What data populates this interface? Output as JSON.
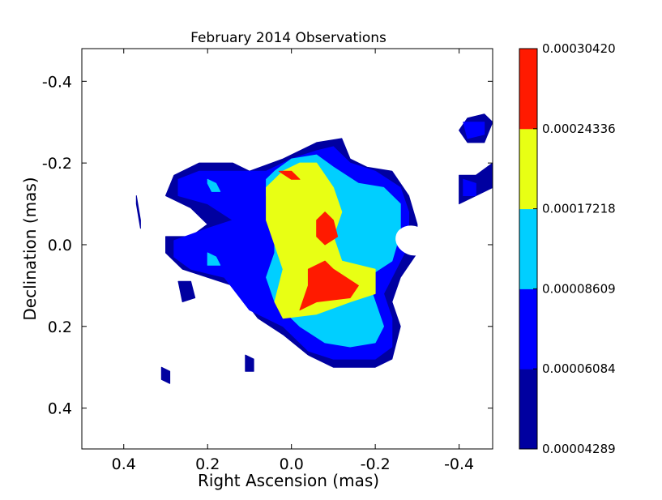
{
  "chart_data": {
    "type": "contour",
    "title": "February 2014 Observations",
    "xlabel": "Right Ascension (mas)",
    "ylabel": "Declination (mas)",
    "xlim": [
      0.5,
      -0.48
    ],
    "ylim": [
      -0.48,
      0.5
    ],
    "x_ticks": [
      0.4,
      0.2,
      0.0,
      -0.2,
      -0.4
    ],
    "x_tick_labels": [
      "0.4",
      "0.2",
      "0.0",
      "-0.2",
      "-0.4"
    ],
    "y_ticks": [
      -0.4,
      -0.2,
      0.0,
      0.2,
      0.4
    ],
    "y_tick_labels": [
      "-0.4",
      "-0.2",
      "0.0",
      "0.2",
      "0.4"
    ],
    "colorbar": {
      "levels": [
        4.289e-05,
        6.084e-05,
        8.609e-05,
        0.00017218,
        0.00024336,
        0.0003042
      ],
      "level_labels": [
        "0.00004289",
        "0.00006084",
        "0.00008609",
        "0.00017218",
        "0.00024336",
        "0.00030420"
      ],
      "colors": [
        "#0000a0",
        "#0000ff",
        "#00cfff",
        "#e8ff14",
        "#ff1a00"
      ]
    },
    "contours": [
      {
        "level": 0,
        "points": [
          [
            0.28,
            -0.17
          ],
          [
            0.22,
            -0.2
          ],
          [
            0.14,
            -0.2
          ],
          [
            0.1,
            -0.18
          ],
          [
            0.02,
            -0.21
          ],
          [
            -0.06,
            -0.25
          ],
          [
            -0.12,
            -0.26
          ],
          [
            -0.14,
            -0.21
          ],
          [
            -0.18,
            -0.19
          ],
          [
            -0.24,
            -0.18
          ],
          [
            -0.28,
            -0.12
          ],
          [
            -0.3,
            -0.05
          ],
          [
            -0.3,
            0.02
          ],
          [
            -0.26,
            0.08
          ],
          [
            -0.24,
            0.14
          ],
          [
            -0.26,
            0.2
          ],
          [
            -0.24,
            0.28
          ],
          [
            -0.2,
            0.3
          ],
          [
            -0.1,
            0.3
          ],
          [
            -0.04,
            0.27
          ],
          [
            0.02,
            0.22
          ],
          [
            0.08,
            0.18
          ],
          [
            0.14,
            0.1
          ],
          [
            0.2,
            0.08
          ],
          [
            0.26,
            0.06
          ],
          [
            0.3,
            0.02
          ],
          [
            0.3,
            -0.02
          ],
          [
            0.24,
            -0.02
          ],
          [
            0.2,
            -0.05
          ],
          [
            0.24,
            -0.09
          ],
          [
            0.3,
            -0.12
          ]
        ]
      },
      {
        "level": 0,
        "points": [
          [
            -0.42,
            -0.31
          ],
          [
            -0.46,
            -0.32
          ],
          [
            -0.48,
            -0.3
          ],
          [
            -0.46,
            -0.25
          ],
          [
            -0.42,
            -0.25
          ],
          [
            -0.4,
            -0.28
          ]
        ]
      },
      {
        "level": 0,
        "points": [
          [
            -0.4,
            -0.17
          ],
          [
            -0.44,
            -0.17
          ],
          [
            -0.48,
            -0.2
          ],
          [
            -0.48,
            -0.14
          ],
          [
            -0.44,
            -0.12
          ],
          [
            -0.4,
            -0.1
          ],
          [
            -0.4,
            -0.14
          ]
        ]
      },
      {
        "level": 0,
        "points": [
          [
            0.37,
            -0.12
          ],
          [
            0.36,
            -0.06
          ],
          [
            0.36,
            -0.04
          ],
          [
            0.37,
            -0.1
          ]
        ]
      },
      {
        "level": 0,
        "points": [
          [
            0.27,
            0.09
          ],
          [
            0.24,
            0.09
          ],
          [
            0.23,
            0.13
          ],
          [
            0.26,
            0.14
          ]
        ]
      },
      {
        "level": 0,
        "points": [
          [
            0.31,
            0.3
          ],
          [
            0.29,
            0.31
          ],
          [
            0.29,
            0.34
          ],
          [
            0.31,
            0.33
          ]
        ]
      },
      {
        "level": 0,
        "points": [
          [
            0.11,
            0.27
          ],
          [
            0.09,
            0.28
          ],
          [
            0.09,
            0.31
          ],
          [
            0.11,
            0.31
          ]
        ]
      },
      {
        "level": 1,
        "points": [
          [
            0.27,
            -0.16
          ],
          [
            0.22,
            -0.18
          ],
          [
            0.15,
            -0.18
          ],
          [
            0.06,
            -0.18
          ],
          [
            0.0,
            -0.21
          ],
          [
            -0.06,
            -0.23
          ],
          [
            -0.1,
            -0.24
          ],
          [
            -0.14,
            -0.2
          ],
          [
            -0.2,
            -0.18
          ],
          [
            -0.26,
            -0.14
          ],
          [
            -0.28,
            -0.08
          ],
          [
            -0.28,
            0.0
          ],
          [
            -0.25,
            0.06
          ],
          [
            -0.22,
            0.12
          ],
          [
            -0.24,
            0.18
          ],
          [
            -0.24,
            0.25
          ],
          [
            -0.2,
            0.28
          ],
          [
            -0.1,
            0.28
          ],
          [
            -0.04,
            0.26
          ],
          [
            0.02,
            0.2
          ],
          [
            0.1,
            0.16
          ],
          [
            0.16,
            0.08
          ],
          [
            0.24,
            0.06
          ],
          [
            0.28,
            0.03
          ],
          [
            0.28,
            -0.01
          ],
          [
            0.2,
            -0.04
          ],
          [
            0.14,
            -0.06
          ],
          [
            0.2,
            -0.1
          ],
          [
            0.27,
            -0.12
          ]
        ]
      },
      {
        "level": 1,
        "points": [
          [
            -0.41,
            -0.3
          ],
          [
            -0.46,
            -0.3
          ],
          [
            -0.46,
            -0.27
          ],
          [
            -0.42,
            -0.26
          ]
        ]
      },
      {
        "level": 1,
        "points": [
          [
            -0.41,
            -0.16
          ],
          [
            -0.44,
            -0.15
          ],
          [
            -0.44,
            -0.12
          ],
          [
            -0.41,
            -0.12
          ]
        ]
      },
      {
        "level": 2,
        "points": [
          [
            0.04,
            -0.18
          ],
          [
            0.0,
            -0.21
          ],
          [
            -0.06,
            -0.22
          ],
          [
            -0.1,
            -0.19
          ],
          [
            -0.16,
            -0.15
          ],
          [
            -0.22,
            -0.14
          ],
          [
            -0.26,
            -0.1
          ],
          [
            -0.26,
            -0.03
          ],
          [
            -0.24,
            0.04
          ],
          [
            -0.18,
            0.08
          ],
          [
            -0.2,
            0.14
          ],
          [
            -0.22,
            0.2
          ],
          [
            -0.2,
            0.24
          ],
          [
            -0.14,
            0.25
          ],
          [
            -0.08,
            0.24
          ],
          [
            -0.02,
            0.2
          ],
          [
            0.04,
            0.14
          ],
          [
            0.06,
            0.08
          ],
          [
            0.04,
            0.02
          ],
          [
            0.04,
            -0.06
          ],
          [
            0.06,
            -0.12
          ],
          [
            0.06,
            -0.16
          ]
        ]
      },
      {
        "level": 2,
        "points": [
          [
            0.2,
            -0.16
          ],
          [
            0.18,
            -0.15
          ],
          [
            0.17,
            -0.13
          ],
          [
            0.19,
            -0.13
          ],
          [
            0.2,
            -0.15
          ]
        ]
      },
      {
        "level": 2,
        "points": [
          [
            0.2,
            0.02
          ],
          [
            0.18,
            0.03
          ],
          [
            0.17,
            0.05
          ],
          [
            0.2,
            0.05
          ]
        ]
      },
      {
        "level": 3,
        "points": [
          [
            0.02,
            -0.18
          ],
          [
            -0.02,
            -0.2
          ],
          [
            -0.06,
            -0.2
          ],
          [
            -0.1,
            -0.14
          ],
          [
            -0.12,
            -0.08
          ],
          [
            -0.1,
            -0.02
          ],
          [
            -0.12,
            0.04
          ],
          [
            -0.2,
            0.06
          ],
          [
            -0.2,
            0.12
          ],
          [
            -0.14,
            0.14
          ],
          [
            -0.06,
            0.17
          ],
          [
            0.02,
            0.18
          ],
          [
            0.04,
            0.14
          ],
          [
            0.02,
            0.06
          ],
          [
            0.04,
            0.0
          ],
          [
            0.06,
            -0.06
          ],
          [
            0.06,
            -0.14
          ]
        ]
      },
      {
        "level": 4,
        "points": [
          [
            0.03,
            -0.18
          ],
          [
            0.0,
            -0.18
          ],
          [
            -0.02,
            -0.16
          ],
          [
            0.0,
            -0.16
          ]
        ]
      },
      {
        "level": 4,
        "points": [
          [
            -0.08,
            -0.08
          ],
          [
            -0.1,
            -0.06
          ],
          [
            -0.11,
            -0.02
          ],
          [
            -0.08,
            0.0
          ],
          [
            -0.06,
            -0.02
          ],
          [
            -0.06,
            -0.06
          ]
        ]
      },
      {
        "level": 4,
        "points": [
          [
            -0.08,
            0.04
          ],
          [
            -0.1,
            0.06
          ],
          [
            -0.16,
            0.1
          ],
          [
            -0.14,
            0.13
          ],
          [
            -0.06,
            0.14
          ],
          [
            -0.02,
            0.16
          ],
          [
            -0.04,
            0.1
          ],
          [
            -0.04,
            0.06
          ]
        ]
      }
    ]
  }
}
